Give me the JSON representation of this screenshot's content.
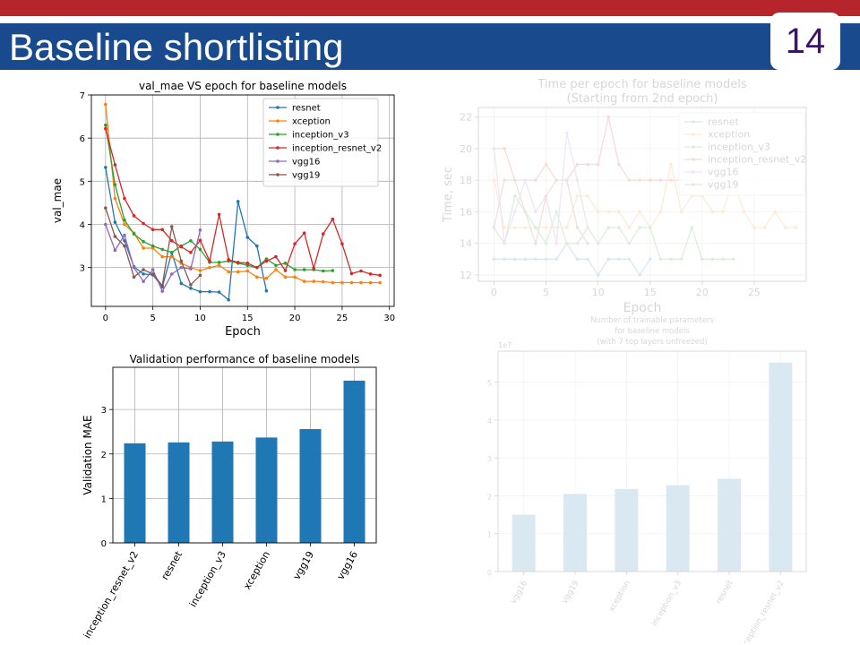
{
  "slide": {
    "title": "Baseline shortlisting",
    "page_number": "14",
    "colors": {
      "top_stripe": "#b5252b",
      "title_band": "#1a4a8e",
      "page_number": "#3a1466"
    }
  },
  "chart_data": [
    {
      "id": "val_mae",
      "type": "line",
      "title": "val_mae VS epoch for baseline models",
      "xlabel": "Epoch",
      "ylabel": "val_mae",
      "xlim": [
        -1.5,
        30.5
      ],
      "ylim": [
        2.1,
        7.0
      ],
      "xticks": [
        0,
        5,
        10,
        15,
        20,
        25,
        30
      ],
      "yticks": [
        3,
        4,
        5,
        6,
        7
      ],
      "grid": true,
      "legend": "top-right",
      "series": [
        {
          "name": "resnet",
          "color": "#1f77b4",
          "y": [
            5.32,
            4.05,
            3.62,
            3.02,
            2.85,
            2.83,
            2.55,
            3.35,
            2.63,
            2.52,
            2.44,
            2.44,
            2.43,
            2.25,
            4.53,
            3.7,
            3.5,
            2.46
          ]
        },
        {
          "name": "xception",
          "color": "#ff7f0e",
          "y": [
            6.78,
            4.6,
            4.0,
            3.8,
            3.45,
            3.45,
            3.25,
            3.25,
            3.1,
            3.0,
            2.93,
            3.0,
            3.05,
            2.9,
            2.9,
            2.92,
            2.78,
            2.75,
            2.95,
            2.78,
            2.78,
            2.68,
            2.68,
            2.67,
            2.65,
            2.65,
            2.65,
            2.65,
            2.65,
            2.65
          ]
        },
        {
          "name": "inception_v3",
          "color": "#2ca02c",
          "y": [
            6.3,
            4.92,
            4.1,
            3.78,
            3.6,
            3.5,
            3.42,
            3.35,
            3.5,
            3.62,
            3.42,
            3.12,
            3.12,
            3.15,
            3.1,
            3.05,
            3.0,
            3.2,
            3.05,
            3.1,
            2.95,
            2.95,
            2.95,
            2.92,
            2.93
          ]
        },
        {
          "name": "inception_resnet_v2",
          "color": "#d62728",
          "y": [
            6.22,
            5.38,
            4.6,
            4.2,
            4.02,
            3.88,
            3.88,
            3.62,
            3.48,
            3.35,
            3.63,
            3.15,
            4.23,
            3.18,
            3.12,
            3.1,
            3.0,
            3.15,
            3.25,
            2.93,
            3.55,
            3.8,
            2.98,
            3.78,
            4.12,
            3.55,
            2.86,
            2.92,
            2.85,
            2.82
          ]
        },
        {
          "name": "vgg16",
          "color": "#9467bd",
          "y": [
            4.0,
            3.4,
            3.75,
            3.0,
            2.68,
            2.95,
            2.45,
            2.85,
            3.0,
            2.97,
            3.87
          ]
        },
        {
          "name": "vgg19",
          "color": "#8c564b",
          "y": [
            4.38,
            3.72,
            3.5,
            2.78,
            2.95,
            2.85,
            2.58,
            3.95,
            3.15,
            2.6,
            2.82
          ]
        }
      ]
    },
    {
      "id": "time_per_epoch",
      "type": "line",
      "title": "Time per epoch for baseline models",
      "subtitle": "(Starting from 2nd epoch)",
      "xlabel": "Epoch",
      "ylabel": "Time, sec",
      "xlim": [
        -1.5,
        30.0
      ],
      "ylim": [
        11.6,
        22.6
      ],
      "xticks": [
        0,
        5,
        10,
        15,
        20,
        25
      ],
      "yticks": [
        12,
        14,
        16,
        18,
        20,
        22
      ],
      "grid": true,
      "legend": "top-right",
      "faded": true,
      "series": [
        {
          "name": "resnet",
          "color": "#1f77b4",
          "y": [
            13,
            13,
            13,
            13,
            13,
            13,
            13,
            14,
            13,
            13,
            12,
            13,
            13,
            13,
            12,
            13
          ]
        },
        {
          "name": "xception",
          "color": "#ff7f0e",
          "y": [
            18,
            15,
            15,
            15,
            15,
            15,
            15,
            15,
            17,
            17,
            16,
            16,
            16,
            15,
            16,
            15,
            16,
            19,
            16,
            17,
            17,
            16,
            16,
            18,
            16,
            15,
            15,
            16,
            15,
            15
          ]
        },
        {
          "name": "inception_v3",
          "color": "#2ca02c",
          "y": [
            15,
            14,
            17,
            16,
            15,
            14,
            16,
            14,
            14,
            15,
            14,
            15,
            15,
            14,
            15,
            15,
            13,
            13,
            13,
            15,
            13,
            13,
            13,
            13
          ]
        },
        {
          "name": "inception_resnet_v2",
          "color": "#d62728",
          "y": [
            20,
            20,
            18,
            18,
            18,
            19,
            18,
            18,
            19,
            19,
            19,
            22,
            19,
            18,
            18,
            18,
            18,
            18,
            18,
            18
          ]
        },
        {
          "name": "vgg16",
          "color": "#9467bd",
          "y": [
            20,
            14,
            16,
            18,
            16,
            17,
            14,
            21,
            18,
            15
          ]
        },
        {
          "name": "vgg19",
          "color": "#8c564b",
          "y": [
            15,
            18,
            18,
            16,
            14,
            17,
            18,
            18,
            15,
            14
          ]
        }
      ]
    },
    {
      "id": "validation_performance",
      "type": "bar",
      "title": "Validation performance of baseline models",
      "xlabel": "",
      "ylabel": "Validation MAE",
      "categories": [
        "inception_resnet_v2",
        "resnet",
        "inception_v3",
        "xception",
        "vgg19",
        "vgg16"
      ],
      "values": [
        2.24,
        2.26,
        2.28,
        2.37,
        2.56,
        3.65
      ],
      "ylim": [
        0,
        3.95
      ],
      "yticks": [
        0,
        1,
        2,
        3
      ],
      "grid": true,
      "color": "#1f77b4"
    },
    {
      "id": "trainable_parameters",
      "type": "bar",
      "title": "Number of trainable parameters",
      "subtitle": "for baseline models",
      "subtitle2": "(with 7 top layers unfreezed)",
      "xlabel": "",
      "ylabel": "",
      "scale_label": "1e7",
      "categories": [
        "vgg16",
        "vgg19",
        "xception",
        "inception_v3",
        "resnet",
        "inception_resnet_v2"
      ],
      "values": [
        1.5,
        2.05,
        2.18,
        2.28,
        2.45,
        5.52
      ],
      "ylim": [
        0,
        5.82
      ],
      "yticks": [
        0,
        1,
        2,
        3,
        4,
        5
      ],
      "grid": true,
      "faded": true,
      "color": "#1f77b4"
    }
  ]
}
